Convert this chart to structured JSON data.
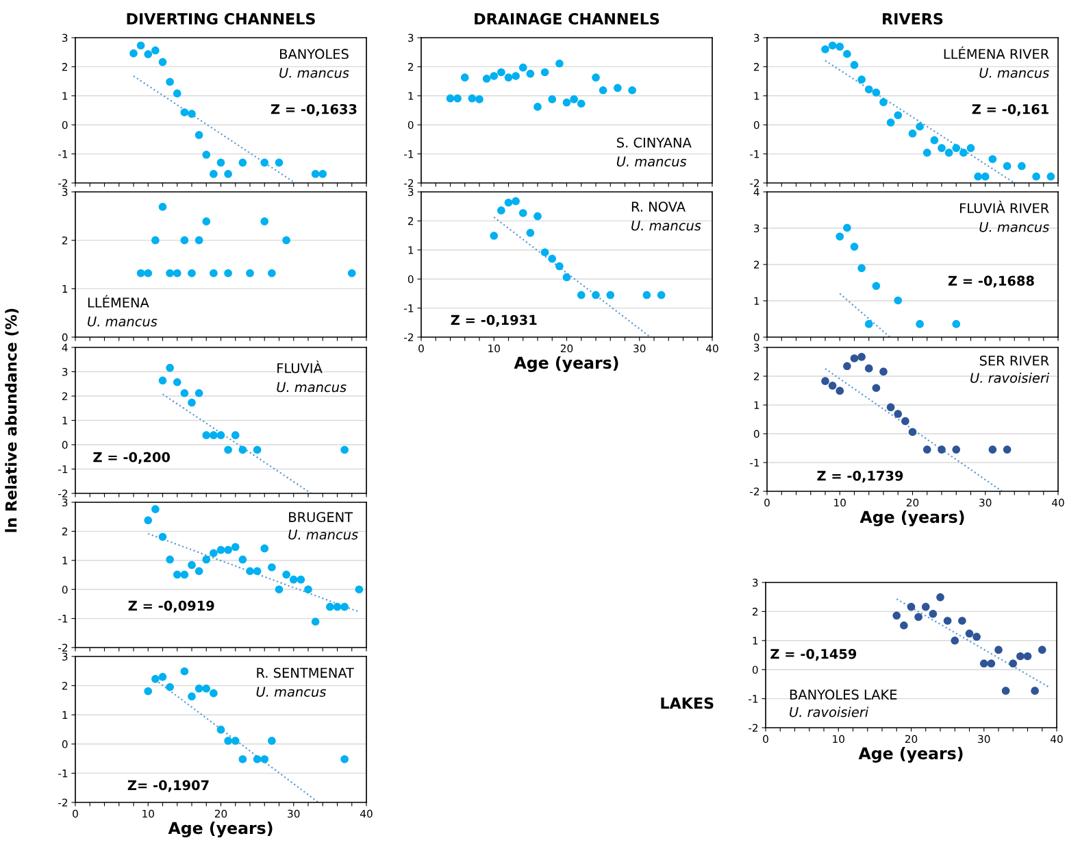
{
  "chart_data": [
    {
      "type": "scatter",
      "title": "DIVERTING CHANNELS",
      "xlim": [
        0,
        40
      ],
      "ylim": [
        -2,
        3
      ],
      "yticks": [
        -2,
        -1,
        0,
        1,
        2,
        3
      ],
      "xticks": [
        0,
        {
          "value": 2,
          "label": null
        },
        {
          "value": 4,
          "label": null
        },
        {
          "value": 6,
          "label": null
        },
        {
          "value": 8,
          "label": null
        },
        10,
        {
          "value": 12,
          "label": null
        },
        {
          "value": 14,
          "label": null
        },
        {
          "value": 16,
          "label": null
        },
        {
          "value": 18,
          "label": null
        },
        20,
        {
          "value": 22,
          "label": null
        },
        {
          "value": 24,
          "label": null
        },
        {
          "value": 26,
          "label": null
        },
        {
          "value": 28,
          "label": null
        },
        30,
        {
          "value": 32,
          "label": null
        },
        {
          "value": 34,
          "label": null
        },
        {
          "value": 36,
          "label": null
        },
        {
          "value": 38,
          "label": null
        },
        40
      ],
      "tick_labels": "y",
      "grid": "y",
      "annotations": [
        "BANYOLES",
        "U. mancus",
        "Z = -0,1633"
      ],
      "series": [
        {
          "marker": "circle",
          "color": "#00b0f0",
          "x": [
            8,
            9,
            10,
            11,
            12,
            13,
            14,
            15,
            16,
            17,
            18,
            19,
            20,
            21,
            23,
            26,
            28,
            33,
            34
          ],
          "values": [
            2.46,
            2.73,
            2.43,
            2.56,
            2.16,
            1.48,
            1.08,
            0.43,
            0.38,
            -0.35,
            -1.03,
            -1.69,
            -1.3,
            -1.69,
            -1.3,
            -1.3,
            -1.3,
            -1.69,
            -1.69
          ]
        },
        {
          "type": "line",
          "line_style": "dotted",
          "color": "#5b9bd5",
          "x": [
            8,
            30.2
          ],
          "values": [
            1.68,
            -2
          ]
        }
      ]
    },
    {
      "type": "scatter",
      "xlim": [
        0,
        40
      ],
      "ylim": [
        0,
        3
      ],
      "yticks": [
        0,
        1,
        2,
        3
      ],
      "xticks": [
        0,
        {
          "value": 2,
          "label": null
        },
        {
          "value": 4,
          "label": null
        },
        {
          "value": 6,
          "label": null
        },
        {
          "value": 8,
          "label": null
        },
        10,
        {
          "value": 12,
          "label": null
        },
        {
          "value": 14,
          "label": null
        },
        {
          "value": 16,
          "label": null
        },
        {
          "value": 18,
          "label": null
        },
        20,
        {
          "value": 22,
          "label": null
        },
        {
          "value": 24,
          "label": null
        },
        {
          "value": 26,
          "label": null
        },
        {
          "value": 28,
          "label": null
        },
        30,
        {
          "value": 32,
          "label": null
        },
        {
          "value": 34,
          "label": null
        },
        {
          "value": 36,
          "label": null
        },
        {
          "value": 38,
          "label": null
        },
        40
      ],
      "tick_labels": "y",
      "grid": "y",
      "annotations": [
        "LLÉMENA",
        "U. mancus"
      ],
      "series": [
        {
          "marker": "circle",
          "color": "#00b0f0",
          "x": [
            9,
            10,
            11,
            12,
            13,
            14,
            15,
            16,
            17,
            18,
            19,
            21,
            24,
            26,
            27,
            29,
            38
          ],
          "values": [
            1.32,
            1.32,
            2.0,
            2.69,
            1.32,
            1.32,
            2.0,
            1.32,
            2.0,
            2.39,
            1.32,
            1.32,
            1.32,
            2.39,
            1.32,
            2.0,
            1.32
          ]
        }
      ]
    },
    {
      "type": "scatter",
      "ylabel": "ln Relative abundance (%)",
      "xlim": [
        0,
        40
      ],
      "ylim": [
        -2,
        4
      ],
      "yticks": [
        -2,
        -1,
        0,
        1,
        2,
        3,
        4
      ],
      "xticks": [
        0,
        {
          "value": 2,
          "label": null
        },
        {
          "value": 4,
          "label": null
        },
        {
          "value": 6,
          "label": null
        },
        {
          "value": 8,
          "label": null
        },
        10,
        {
          "value": 12,
          "label": null
        },
        {
          "value": 14,
          "label": null
        },
        {
          "value": 16,
          "label": null
        },
        {
          "value": 18,
          "label": null
        },
        20,
        {
          "value": 22,
          "label": null
        },
        {
          "value": 24,
          "label": null
        },
        {
          "value": 26,
          "label": null
        },
        {
          "value": 28,
          "label": null
        },
        30,
        {
          "value": 32,
          "label": null
        },
        {
          "value": 34,
          "label": null
        },
        {
          "value": 36,
          "label": null
        },
        {
          "value": 38,
          "label": null
        },
        40
      ],
      "tick_labels": "y",
      "grid": "y",
      "annotations": [
        "FLUVIÀ",
        "U. mancus",
        "Z = -0,200"
      ],
      "series": [
        {
          "marker": "circle",
          "color": "#00b0f0",
          "x": [
            12,
            13,
            14,
            15,
            16,
            17,
            18,
            19,
            20,
            21,
            22,
            23,
            25,
            37
          ],
          "values": [
            2.64,
            3.16,
            2.57,
            2.12,
            1.73,
            2.12,
            0.39,
            0.39,
            0.39,
            -0.21,
            0.39,
            -0.21,
            -0.21,
            -0.21
          ]
        },
        {
          "type": "line",
          "line_style": "dotted",
          "color": "#5b9bd5",
          "x": [
            12,
            32.4
          ],
          "values": [
            2.08,
            -2
          ]
        }
      ]
    },
    {
      "type": "scatter",
      "xlim": [
        0,
        40
      ],
      "ylim": [
        -2,
        3
      ],
      "yticks": [
        -2,
        -1,
        0,
        1,
        2,
        3
      ],
      "xticks": [
        0,
        {
          "value": 2,
          "label": null
        },
        {
          "value": 4,
          "label": null
        },
        {
          "value": 6,
          "label": null
        },
        {
          "value": 8,
          "label": null
        },
        10,
        {
          "value": 12,
          "label": null
        },
        {
          "value": 14,
          "label": null
        },
        {
          "value": 16,
          "label": null
        },
        {
          "value": 18,
          "label": null
        },
        20,
        {
          "value": 22,
          "label": null
        },
        {
          "value": 24,
          "label": null
        },
        {
          "value": 26,
          "label": null
        },
        {
          "value": 28,
          "label": null
        },
        30,
        {
          "value": 32,
          "label": null
        },
        {
          "value": 34,
          "label": null
        },
        {
          "value": 36,
          "label": null
        },
        {
          "value": 38,
          "label": null
        },
        40
      ],
      "tick_labels": "y",
      "grid": "y",
      "annotations": [
        "BRUGENT",
        "U. mancus",
        "Z = -0,0919"
      ],
      "series": [
        {
          "marker": "circle",
          "color": "#00b0f0",
          "x": [
            10,
            11,
            12,
            13,
            14,
            15,
            16,
            17,
            18,
            19,
            20,
            21,
            22,
            23,
            24,
            25,
            26,
            27,
            28,
            29,
            30,
            31,
            32,
            33,
            35,
            36,
            37,
            39
          ],
          "values": [
            2.38,
            2.76,
            1.81,
            1.03,
            0.51,
            0.51,
            0.84,
            0.63,
            1.03,
            1.25,
            1.36,
            1.36,
            1.46,
            1.03,
            0.63,
            0.63,
            1.41,
            0.76,
            0,
            0.51,
            0.34,
            0.34,
            0,
            -1.11,
            -0.6,
            -0.6,
            -0.6,
            0
          ]
        },
        {
          "type": "line",
          "line_style": "dotted",
          "color": "#5b9bd5",
          "x": [
            10,
            39
          ],
          "values": [
            1.92,
            -0.77
          ]
        }
      ]
    },
    {
      "type": "scatter",
      "xlabel": "Age (years)",
      "xlim": [
        0,
        40
      ],
      "ylim": [
        -2,
        3
      ],
      "yticks": [
        -2,
        -1,
        0,
        1,
        2,
        3
      ],
      "xticks": [
        0,
        {
          "value": 2,
          "label": null
        },
        {
          "value": 4,
          "label": null
        },
        {
          "value": 6,
          "label": null
        },
        {
          "value": 8,
          "label": null
        },
        10,
        {
          "value": 12,
          "label": null
        },
        {
          "value": 14,
          "label": null
        },
        {
          "value": 16,
          "label": null
        },
        {
          "value": 18,
          "label": null
        },
        20,
        {
          "value": 22,
          "label": null
        },
        {
          "value": 24,
          "label": null
        },
        {
          "value": 26,
          "label": null
        },
        {
          "value": 28,
          "label": null
        },
        30,
        {
          "value": 32,
          "label": null
        },
        {
          "value": 34,
          "label": null
        },
        {
          "value": 36,
          "label": null
        },
        {
          "value": 38,
          "label": null
        },
        40
      ],
      "grid": "y",
      "annotations": [
        "R. SENTMENAT",
        "U. mancus",
        "Z= -0,1907"
      ],
      "series": [
        {
          "marker": "circle",
          "color": "#00b0f0",
          "x": [
            10,
            11,
            12,
            13,
            15,
            16,
            17,
            18,
            19,
            20,
            21,
            22,
            23,
            25,
            26,
            27,
            37
          ],
          "values": [
            1.81,
            2.23,
            2.3,
            1.95,
            2.49,
            1.63,
            1.9,
            1.9,
            1.74,
            0.49,
            0.11,
            0.11,
            -0.52,
            -0.52,
            -0.52,
            0.11,
            -0.52
          ]
        },
        {
          "type": "line",
          "line_style": "dotted",
          "color": "#5b9bd5",
          "x": [
            11,
            33.4
          ],
          "values": [
            2.2,
            -2
          ]
        }
      ]
    },
    {
      "type": "scatter",
      "title": "DRAINAGE CHANNELS",
      "xlim": [
        0,
        40
      ],
      "ylim": [
        -2,
        3
      ],
      "yticks": [
        -2,
        -1,
        0,
        1,
        2,
        3
      ],
      "xticks": [
        0,
        {
          "value": 2,
          "label": null
        },
        {
          "value": 4,
          "label": null
        },
        {
          "value": 6,
          "label": null
        },
        {
          "value": 8,
          "label": null
        },
        10,
        {
          "value": 12,
          "label": null
        },
        {
          "value": 14,
          "label": null
        },
        {
          "value": 16,
          "label": null
        },
        {
          "value": 18,
          "label": null
        },
        20,
        {
          "value": 22,
          "label": null
        },
        {
          "value": 24,
          "label": null
        },
        {
          "value": 26,
          "label": null
        },
        {
          "value": 28,
          "label": null
        },
        30,
        {
          "value": 32,
          "label": null
        },
        {
          "value": 34,
          "label": null
        },
        {
          "value": 36,
          "label": null
        },
        {
          "value": 38,
          "label": null
        },
        40
      ],
      "tick_labels": "y",
      "grid": "y",
      "annotations": [
        "S. CINYANA",
        "U. mancus"
      ],
      "series": [
        {
          "marker": "circle",
          "color": "#00b0f0",
          "x": [
            4,
            5,
            6,
            7,
            8,
            9,
            10,
            11,
            12,
            13,
            14,
            15,
            16,
            17,
            18,
            19,
            20,
            21,
            22,
            24,
            25,
            27,
            29
          ],
          "values": [
            0.91,
            0.91,
            1.63,
            0.91,
            0.88,
            1.59,
            1.68,
            1.81,
            1.63,
            1.68,
            1.97,
            1.76,
            0.62,
            1.81,
            0.88,
            2.11,
            0.77,
            0.88,
            0.73,
            1.63,
            1.19,
            1.27,
            1.19
          ]
        }
      ]
    },
    {
      "type": "scatter",
      "xlabel": "Age (years)",
      "xlim": [
        0,
        40
      ],
      "ylim": [
        -2,
        3
      ],
      "yticks": [
        -2,
        -1,
        0,
        1,
        2,
        3
      ],
      "xticks": [
        0,
        {
          "value": 2,
          "label": null
        },
        {
          "value": 4,
          "label": null
        },
        {
          "value": 6,
          "label": null
        },
        {
          "value": 8,
          "label": null
        },
        10,
        {
          "value": 12,
          "label": null
        },
        {
          "value": 14,
          "label": null
        },
        {
          "value": 16,
          "label": null
        },
        {
          "value": 18,
          "label": null
        },
        20,
        {
          "value": 22,
          "label": null
        },
        {
          "value": 24,
          "label": null
        },
        {
          "value": 26,
          "label": null
        },
        {
          "value": 28,
          "label": null
        },
        30,
        {
          "value": 32,
          "label": null
        },
        {
          "value": 34,
          "label": null
        },
        {
          "value": 36,
          "label": null
        },
        {
          "value": 38,
          "label": null
        },
        40
      ],
      "grid": "y",
      "annotations": [
        "R. NOVA",
        "U. mancus",
        "Z = -0,1931"
      ],
      "series": [
        {
          "marker": "circle",
          "color": "#00b0f0",
          "x": [
            10,
            11,
            12,
            13,
            14,
            15,
            16,
            17,
            18,
            19,
            20,
            22,
            24,
            26,
            31,
            33
          ],
          "values": [
            1.49,
            2.36,
            2.63,
            2.68,
            2.27,
            1.59,
            2.16,
            0.92,
            0.7,
            0.44,
            0.06,
            -0.55,
            -0.55,
            -0.55,
            -0.55,
            -0.55
          ]
        },
        {
          "type": "line",
          "line_style": "dotted",
          "color": "#5b9bd5",
          "x": [
            10,
            31.5
          ],
          "values": [
            2.13,
            -2
          ]
        }
      ]
    },
    {
      "type": "scatter",
      "title": "RIVERS",
      "xlim": [
        0,
        40
      ],
      "ylim": [
        -2,
        3
      ],
      "yticks": [
        -2,
        -1,
        0,
        1,
        2,
        3
      ],
      "xticks": [
        0,
        {
          "value": 2,
          "label": null
        },
        {
          "value": 4,
          "label": null
        },
        {
          "value": 6,
          "label": null
        },
        {
          "value": 8,
          "label": null
        },
        10,
        {
          "value": 12,
          "label": null
        },
        {
          "value": 14,
          "label": null
        },
        {
          "value": 16,
          "label": null
        },
        {
          "value": 18,
          "label": null
        },
        20,
        {
          "value": 22,
          "label": null
        },
        {
          "value": 24,
          "label": null
        },
        {
          "value": 26,
          "label": null
        },
        {
          "value": 28,
          "label": null
        },
        30,
        {
          "value": 32,
          "label": null
        },
        {
          "value": 34,
          "label": null
        },
        {
          "value": 36,
          "label": null
        },
        {
          "value": 38,
          "label": null
        },
        40
      ],
      "tick_labels": "y",
      "grid": "y",
      "annotations": [
        "LLÉMENA RIVER",
        "U. mancus",
        "Z = -0,161"
      ],
      "series": [
        {
          "marker": "circle",
          "color": "#00b0f0",
          "x": [
            8,
            9,
            10,
            11,
            12,
            13,
            14,
            15,
            16,
            17,
            18,
            20,
            21,
            22,
            23,
            24,
            25,
            26,
            27,
            28,
            29,
            30,
            31,
            33,
            35,
            37,
            39
          ],
          "values": [
            2.6,
            2.73,
            2.69,
            2.44,
            2.06,
            1.56,
            1.22,
            1.11,
            0.78,
            0.08,
            0.33,
            -0.3,
            -0.06,
            -0.96,
            -0.53,
            -0.8,
            -0.96,
            -0.8,
            -0.96,
            -0.8,
            -1.78,
            -1.78,
            -1.18,
            -1.42,
            -1.42,
            -1.78,
            -1.78
          ]
        },
        {
          "type": "line",
          "line_style": "dotted",
          "color": "#5b9bd5",
          "x": [
            8,
            34
          ],
          "values": [
            2.21,
            -2
          ]
        }
      ]
    },
    {
      "type": "scatter",
      "xlim": [
        0,
        40
      ],
      "ylim": [
        0,
        4
      ],
      "yticks": [
        0,
        1,
        2,
        3,
        4
      ],
      "xticks": [
        0,
        {
          "value": 2,
          "label": null
        },
        {
          "value": 4,
          "label": null
        },
        {
          "value": 6,
          "label": null
        },
        {
          "value": 8,
          "label": null
        },
        10,
        {
          "value": 12,
          "label": null
        },
        {
          "value": 14,
          "label": null
        },
        {
          "value": 16,
          "label": null
        },
        {
          "value": 18,
          "label": null
        },
        20,
        {
          "value": 22,
          "label": null
        },
        {
          "value": 24,
          "label": null
        },
        {
          "value": 26,
          "label": null
        },
        {
          "value": 28,
          "label": null
        },
        30,
        {
          "value": 32,
          "label": null
        },
        {
          "value": 34,
          "label": null
        },
        {
          "value": 36,
          "label": null
        },
        {
          "value": 38,
          "label": null
        },
        40
      ],
      "tick_labels": "y",
      "grid": "y",
      "annotations": [
        "FLUVIÀ RIVER",
        "U. mancus",
        "Z = -0,1688"
      ],
      "series": [
        {
          "marker": "circle",
          "color": "#00b0f0",
          "x": [
            10,
            11,
            12,
            13,
            14,
            15,
            18,
            21,
            26
          ],
          "values": [
            2.77,
            3.01,
            2.49,
            1.9,
            0.36,
            1.41,
            1.01,
            0.36,
            0.36
          ]
        },
        {
          "type": "line",
          "line_style": "dotted",
          "color": "#5b9bd5",
          "x": [
            10,
            16.9
          ],
          "values": [
            1.2,
            0
          ]
        }
      ]
    },
    {
      "type": "scatter",
      "xlabel": "Age (years)",
      "xlim": [
        0,
        40
      ],
      "ylim": [
        -2,
        3
      ],
      "yticks": [
        -2,
        -1,
        0,
        1,
        2,
        3
      ],
      "xticks": [
        0,
        {
          "value": 2,
          "label": null
        },
        {
          "value": 4,
          "label": null
        },
        {
          "value": 6,
          "label": null
        },
        {
          "value": 8,
          "label": null
        },
        10,
        {
          "value": 12,
          "label": null
        },
        {
          "value": 14,
          "label": null
        },
        {
          "value": 16,
          "label": null
        },
        {
          "value": 18,
          "label": null
        },
        20,
        {
          "value": 22,
          "label": null
        },
        {
          "value": 24,
          "label": null
        },
        {
          "value": 26,
          "label": null
        },
        {
          "value": 28,
          "label": null
        },
        30,
        {
          "value": 32,
          "label": null
        },
        {
          "value": 34,
          "label": null
        },
        {
          "value": 36,
          "label": null
        },
        {
          "value": 38,
          "label": null
        },
        40
      ],
      "grid": "y",
      "annotations": [
        "SER RIVER",
        "U. ravoisieri",
        "Z = -0,1739"
      ],
      "series": [
        {
          "marker": "circle",
          "color": "#2f5597",
          "x": [
            8,
            9,
            10,
            11,
            12,
            13,
            14,
            15,
            16,
            17,
            18,
            19,
            20,
            22,
            24,
            26,
            31,
            33
          ],
          "values": [
            1.83,
            1.67,
            1.49,
            2.35,
            2.62,
            2.67,
            2.27,
            1.59,
            2.16,
            0.92,
            0.69,
            0.44,
            0.06,
            -0.55,
            -0.55,
            -0.55,
            -0.55,
            -0.55
          ]
        },
        {
          "type": "line",
          "line_style": "dotted",
          "color": "#5b9bd5",
          "x": [
            8,
            32.3
          ],
          "values": [
            2.26,
            -2
          ]
        }
      ]
    },
    {
      "type": "scatter",
      "title": "LAKES",
      "xlabel": "Age (years)",
      "xlim": [
        0,
        40
      ],
      "ylim": [
        -2,
        3
      ],
      "yticks": [
        -2,
        -1,
        0,
        1,
        2,
        3
      ],
      "xticks": [
        0,
        {
          "value": 2,
          "label": null
        },
        {
          "value": 4,
          "label": null
        },
        {
          "value": 6,
          "label": null
        },
        {
          "value": 8,
          "label": null
        },
        10,
        {
          "value": 12,
          "label": null
        },
        {
          "value": 14,
          "label": null
        },
        {
          "value": 16,
          "label": null
        },
        {
          "value": 18,
          "label": null
        },
        20,
        {
          "value": 22,
          "label": null
        },
        {
          "value": 24,
          "label": null
        },
        {
          "value": 26,
          "label": null
        },
        {
          "value": 28,
          "label": null
        },
        30,
        {
          "value": 32,
          "label": null
        },
        {
          "value": 34,
          "label": null
        },
        {
          "value": 36,
          "label": null
        },
        {
          "value": 38,
          "label": null
        },
        40
      ],
      "grid": "y",
      "annotations": [
        "BANYOLES LAKE",
        "U. ravoisieri",
        "Z = -0,1459"
      ],
      "series": [
        {
          "marker": "circle",
          "color": "#2f5597",
          "x": [
            18,
            19,
            20,
            21,
            22,
            23,
            24,
            25,
            26,
            27,
            28,
            29,
            30,
            31,
            32,
            33,
            34,
            35,
            36,
            37,
            38
          ],
          "values": [
            1.86,
            1.52,
            2.16,
            1.81,
            2.16,
            1.92,
            2.49,
            1.68,
            1.0,
            1.68,
            1.24,
            1.13,
            0.21,
            0.21,
            0.68,
            -0.73,
            0.21,
            0.46,
            0.46,
            -0.73,
            0.68
          ]
        },
        {
          "type": "line",
          "line_style": "dotted",
          "color": "#5b9bd5",
          "x": [
            18,
            39
          ],
          "values": [
            2.43,
            -0.61
          ]
        }
      ]
    }
  ]
}
